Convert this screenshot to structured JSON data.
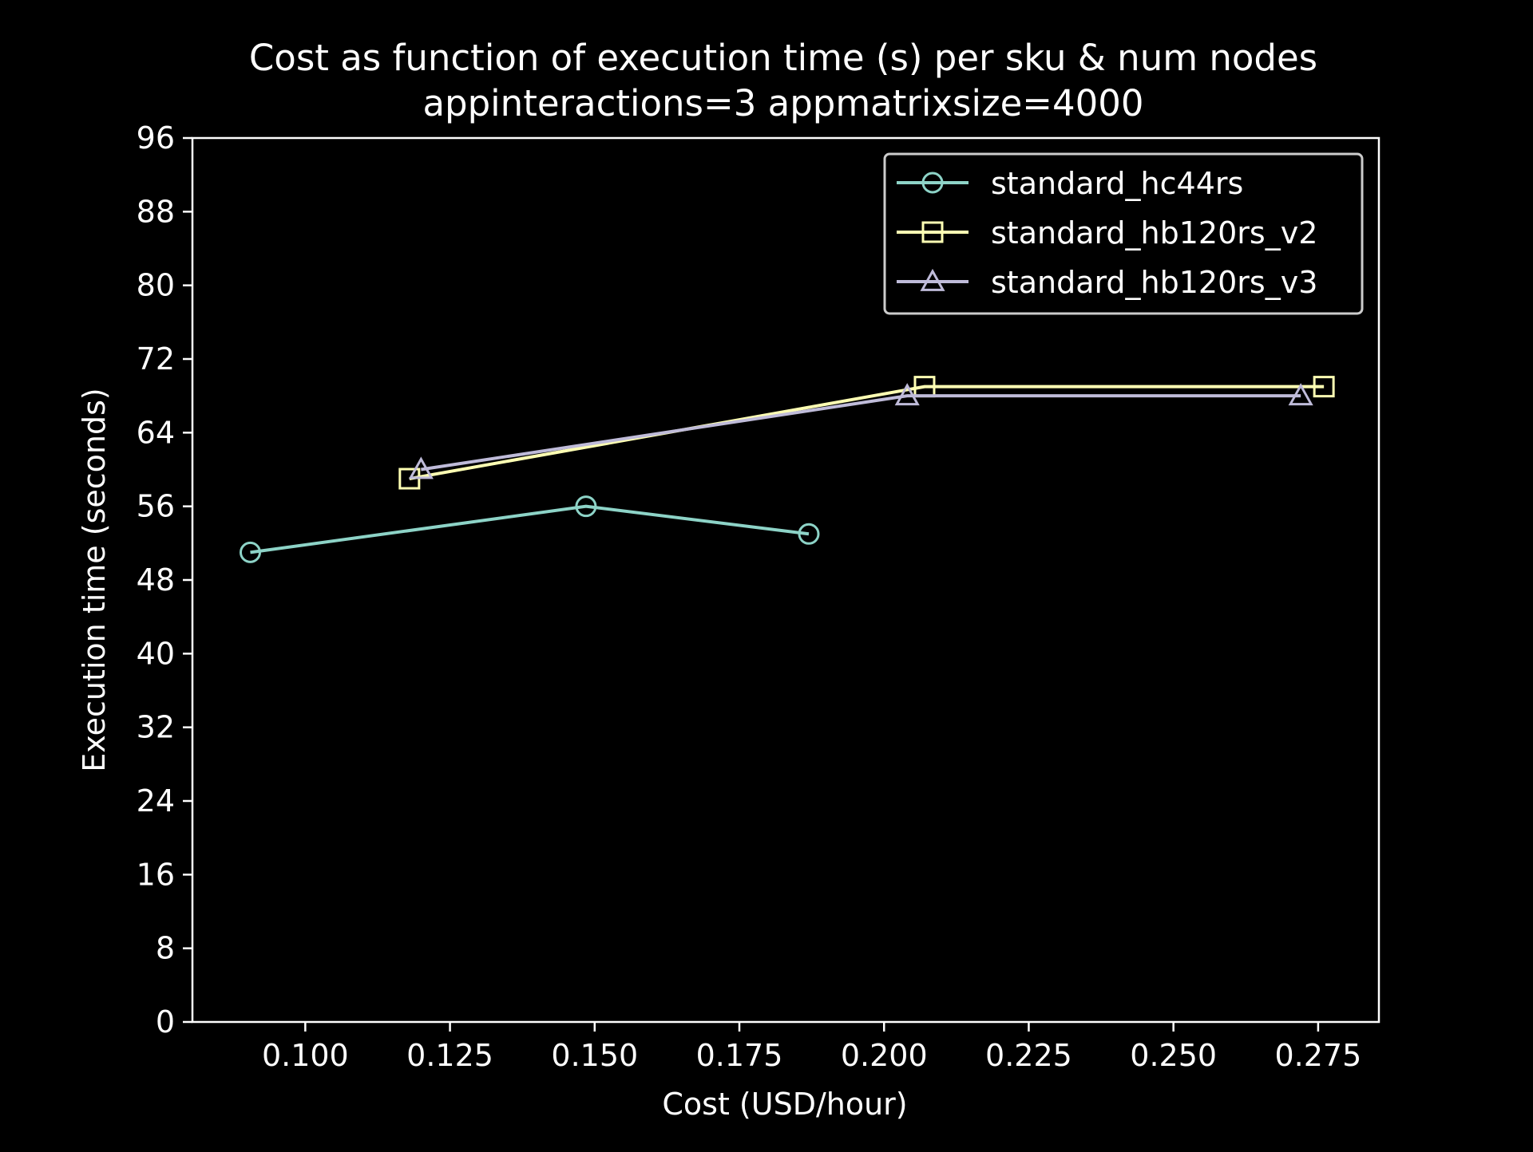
{
  "chart_data": {
    "type": "line",
    "title": "Cost as function of execution time (s) per sku & num nodes",
    "subtitle": "appinteractions=3  appmatrixsize=4000",
    "xlabel": "Cost (USD/hour)",
    "ylabel": "Execution time (seconds)",
    "xlim": [
      0.0805,
      0.2855
    ],
    "ylim": [
      0,
      96
    ],
    "x_ticks": [
      "0.100",
      "0.125",
      "0.150",
      "0.175",
      "0.200",
      "0.225",
      "0.250",
      "0.275"
    ],
    "x_tick_values": [
      0.1,
      0.125,
      0.15,
      0.175,
      0.2,
      0.225,
      0.25,
      0.275
    ],
    "y_ticks": [
      "0",
      "8",
      "16",
      "24",
      "32",
      "40",
      "48",
      "56",
      "64",
      "72",
      "80",
      "88",
      "96"
    ],
    "y_tick_values": [
      0,
      8,
      16,
      24,
      32,
      40,
      48,
      56,
      64,
      72,
      80,
      88,
      96
    ],
    "grid": false,
    "legend_position": "top-right",
    "series": [
      {
        "name": "standard_hc44rs",
        "marker": "circle",
        "color": "#8dd3c7",
        "x": [
          0.0905,
          0.1485,
          0.187
        ],
        "y": [
          51,
          56,
          53
        ]
      },
      {
        "name": "standard_hb120rs_v2",
        "marker": "square",
        "color": "#feffb3",
        "x": [
          0.118,
          0.207,
          0.276
        ],
        "y": [
          59,
          69,
          69
        ]
      },
      {
        "name": "standard_hb120rs_v3",
        "marker": "triangle",
        "color": "#bfbbd9",
        "x": [
          0.12,
          0.204,
          0.272
        ],
        "y": [
          60,
          68,
          68
        ]
      }
    ]
  }
}
